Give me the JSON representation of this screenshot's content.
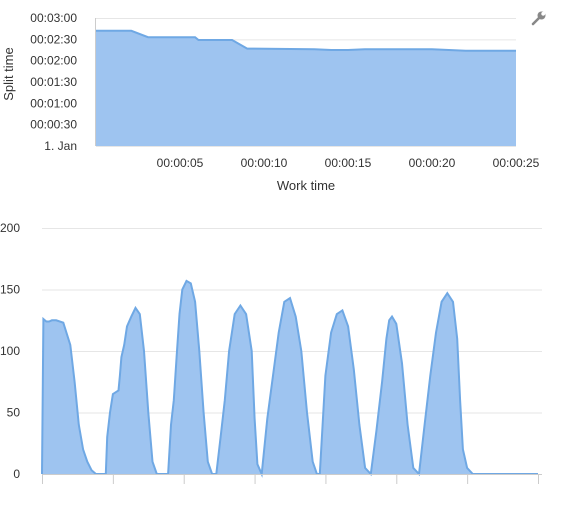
{
  "colors": {
    "fill": "#9ec4f0",
    "line": "#6fa8e4",
    "grid": "#e6e6e6",
    "axis": "#cccccc",
    "text": "#333333",
    "muted_tick": "#999999",
    "icon": "#888888"
  },
  "toolbar": {
    "icon": "wrench-icon"
  },
  "chart_data": [
    {
      "type": "area",
      "xlabel": "Work time",
      "ylabel": "Split time",
      "x_unit": "seconds",
      "y_unit": "seconds",
      "xlim": [
        0,
        25
      ],
      "ylim": [
        0,
        180
      ],
      "grid": true,
      "y_tick_values": [
        0,
        30,
        60,
        90,
        120,
        150,
        180
      ],
      "y_ticks": [
        "1. Jan",
        "00:00:30",
        "00:01:00",
        "00:01:30",
        "00:02:00",
        "00:02:30",
        "00:03:00"
      ],
      "x_tick_values": [
        5,
        10,
        15,
        20,
        25
      ],
      "x_ticks": [
        "00:00:05",
        "00:00:10",
        "00:00:15",
        "00:00:20",
        "00:00:25"
      ],
      "series": [
        {
          "x": [
            0,
            2.1,
            3.1,
            5.9,
            6.1,
            8.1,
            9.0,
            13.0,
            14.0,
            15.0,
            16.0,
            20.0,
            22.0,
            25.0
          ],
          "y": [
            162,
            162,
            153,
            153,
            149,
            149,
            137,
            136,
            135,
            135,
            136,
            136,
            134,
            134
          ]
        }
      ]
    },
    {
      "type": "area",
      "xlabel": "",
      "ylabel": "",
      "ylim": [
        0,
        200
      ],
      "xlim": [
        0,
        7
      ],
      "grid": true,
      "y_tick_values": [
        0,
        50,
        100,
        150,
        200
      ],
      "y_ticks": [
        "0",
        "50",
        "100",
        "150",
        "200"
      ],
      "x_tick_count": 8,
      "x_ticks": [],
      "series": [
        {
          "x": [
            0.0,
            0.02,
            0.06,
            0.1,
            0.14,
            0.2,
            0.3,
            0.4,
            0.46,
            0.52,
            0.58,
            0.64,
            0.7,
            0.76,
            0.82,
            0.88,
            0.9,
            0.92,
            0.96,
            1.0,
            1.08,
            1.1,
            1.12,
            1.16,
            1.2,
            1.26,
            1.32,
            1.38,
            1.44,
            1.5,
            1.56,
            1.62,
            1.68,
            1.74,
            1.78,
            1.82,
            1.86,
            1.9,
            1.94,
            1.98,
            2.04,
            2.1,
            2.16,
            2.22,
            2.28,
            2.34,
            2.4,
            2.46,
            2.52,
            2.58,
            2.64,
            2.72,
            2.8,
            2.88,
            2.96,
            3.0,
            3.04,
            3.1,
            3.18,
            3.26,
            3.34,
            3.42,
            3.5,
            3.58,
            3.66,
            3.74,
            3.82,
            3.88,
            3.92,
            3.96,
            4.0,
            4.08,
            4.16,
            4.24,
            4.32,
            4.4,
            4.48,
            4.56,
            4.64,
            4.72,
            4.8,
            4.86,
            4.9,
            4.94,
            5.0,
            5.08,
            5.16,
            5.24,
            5.32,
            5.4,
            5.48,
            5.56,
            5.64,
            5.72,
            5.8,
            5.86,
            5.9,
            5.94,
            6.0,
            6.08,
            6.16,
            6.24,
            6.32,
            6.4,
            6.48,
            6.56,
            6.64,
            6.72,
            6.8,
            6.88,
            6.92,
            6.96,
            7.0
          ],
          "y": [
            0,
            126,
            124,
            124,
            125,
            125,
            123,
            105,
            75,
            40,
            20,
            10,
            3,
            0,
            0,
            0,
            0,
            30,
            50,
            65,
            68,
            80,
            95,
            105,
            120,
            128,
            135,
            130,
            100,
            50,
            10,
            0,
            0,
            0,
            0,
            40,
            60,
            95,
            130,
            150,
            157,
            155,
            140,
            100,
            50,
            10,
            0,
            0,
            30,
            60,
            100,
            130,
            137,
            130,
            100,
            45,
            8,
            0,
            45,
            80,
            115,
            140,
            143,
            128,
            100,
            50,
            10,
            0,
            0,
            40,
            80,
            115,
            130,
            133,
            120,
            85,
            40,
            5,
            0,
            35,
            75,
            110,
            125,
            128,
            122,
            90,
            40,
            5,
            0,
            40,
            80,
            115,
            140,
            147,
            140,
            110,
            60,
            20,
            5,
            0,
            0,
            0,
            0,
            0,
            0,
            0,
            0,
            0,
            0,
            0,
            0,
            0,
            0
          ]
        }
      ]
    }
  ]
}
